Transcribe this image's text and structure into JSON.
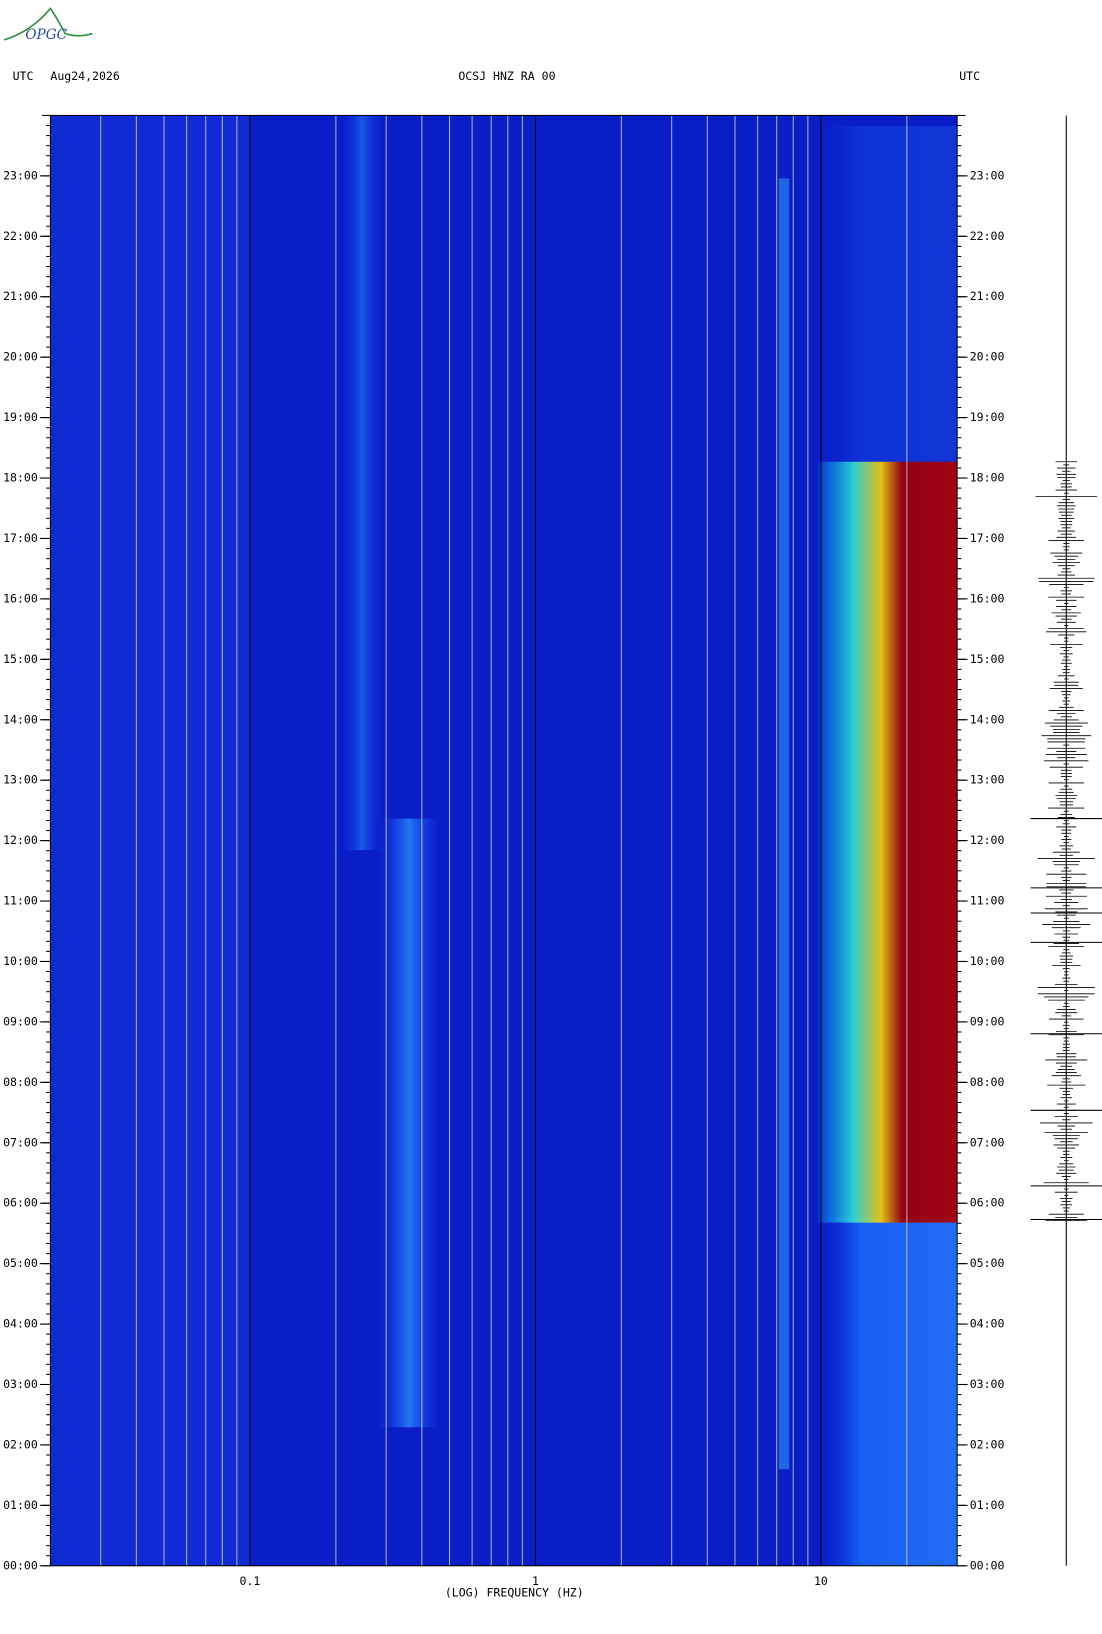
{
  "logo": "OPGC",
  "chart_data": {
    "type": "spectrogram",
    "title": "OCSJ HNZ RA 00",
    "date": "Aug24,2026",
    "left_axis_label": "UTC",
    "right_axis_label": "UTC",
    "x_label": "(LOG) FREQUENCY (HZ)",
    "x_scale": "log",
    "xlim": [
      0.02,
      30
    ],
    "xticks": [
      {
        "value": 0.1,
        "label": "0.1"
      },
      1,
      10
    ],
    "ylim": [
      0,
      24
    ],
    "yticks": [
      {
        "value": 0,
        "label": "00:00"
      },
      {
        "value": 1,
        "label": "01:00"
      },
      {
        "value": 2,
        "label": "02:00"
      },
      {
        "value": 3,
        "label": "03:00"
      },
      {
        "value": 4,
        "label": "04:00"
      },
      {
        "value": 5,
        "label": "05:00"
      },
      {
        "value": 6,
        "label": "06:00"
      },
      {
        "value": 7,
        "label": "07:00"
      },
      {
        "value": 8,
        "label": "08:00"
      },
      {
        "value": 9,
        "label": "09:00"
      },
      {
        "value": 10,
        "label": "10:00"
      },
      {
        "value": 11,
        "label": "11:00"
      },
      {
        "value": 12,
        "label": "12:00"
      },
      {
        "value": 13,
        "label": "13:00"
      },
      {
        "value": 14,
        "label": "14:00"
      },
      {
        "value": 15,
        "label": "15:00"
      },
      {
        "value": 16,
        "label": "16:00"
      },
      {
        "value": 17,
        "label": "17:00"
      },
      {
        "value": 18,
        "label": "18:00"
      },
      {
        "value": 19,
        "label": "19:00"
      },
      {
        "value": 20,
        "label": "20:00"
      },
      {
        "value": 21,
        "label": "21:00"
      },
      {
        "value": 22,
        "label": "22:00"
      },
      {
        "value": 23,
        "label": "23:00"
      }
    ],
    "grid": true
  }
}
